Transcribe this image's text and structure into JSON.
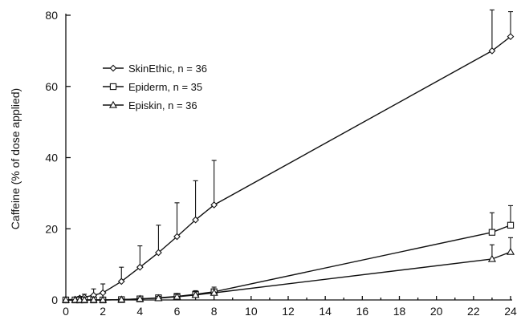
{
  "chart_data": {
    "type": "line",
    "title": "",
    "xlabel": "",
    "ylabel": "Caffeine (% of dose applied)",
    "xlim": [
      0,
      24
    ],
    "ylim": [
      0,
      80
    ],
    "x_ticks": [
      0,
      2,
      4,
      6,
      8,
      10,
      12,
      14,
      16,
      18,
      20,
      22,
      24
    ],
    "y_ticks": [
      0,
      20,
      40,
      60,
      80
    ],
    "grid": false,
    "legend_position": "top-left",
    "series": [
      {
        "name": "SkinEthic, n = 36",
        "marker": "diamond",
        "x": [
          0,
          0.5,
          0.75,
          1,
          1.5,
          2,
          3,
          4,
          5,
          6,
          7,
          8,
          23,
          24
        ],
        "y": [
          0,
          0.2,
          0.5,
          0.8,
          1.3,
          2,
          5.2,
          9.2,
          13.3,
          17.8,
          22.5,
          26.7,
          70,
          74
        ],
        "err": [
          0,
          0.3,
          0.5,
          0.8,
          1.8,
          2.5,
          4,
          6,
          7.7,
          9.5,
          11,
          12.5,
          11.5,
          7
        ]
      },
      {
        "name": "Epiderm, n = 35",
        "marker": "square",
        "x": [
          0,
          0.5,
          0.75,
          1,
          1.5,
          2,
          3,
          4,
          5,
          6,
          7,
          8,
          23,
          24
        ],
        "y": [
          0,
          0,
          0,
          0,
          0,
          0,
          0.1,
          0.3,
          0.6,
          1,
          1.6,
          2.3,
          19,
          21
        ],
        "err": [
          0,
          0,
          0,
          0,
          0,
          0,
          0.2,
          0.3,
          0.5,
          0.8,
          1,
          1.3,
          5.5,
          5.5
        ]
      },
      {
        "name": "Episkin, n = 36",
        "marker": "triangle",
        "x": [
          0,
          0.5,
          0.75,
          1,
          1.5,
          2,
          3,
          4,
          5,
          6,
          7,
          8,
          23,
          24
        ],
        "y": [
          0,
          0,
          0,
          0,
          0,
          0,
          0.1,
          0.3,
          0.5,
          0.9,
          1.4,
          2,
          11.5,
          13.5
        ],
        "err": [
          0,
          0,
          0,
          0,
          0,
          0,
          0.2,
          0.3,
          0.5,
          0.7,
          0.9,
          1.1,
          4,
          4
        ]
      }
    ]
  }
}
